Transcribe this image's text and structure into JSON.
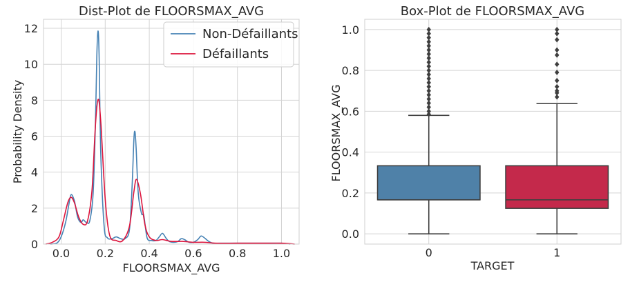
{
  "chart_data": [
    {
      "type": "line",
      "title": "Dist-Plot de FLOORSMAX_AVG",
      "xlabel": "FLOORSMAX_AVG",
      "ylabel": "Probability Density",
      "xlim": [
        -0.08,
        1.08
      ],
      "ylim": [
        0,
        12.5
      ],
      "xticks": [
        "0.0",
        "0.2",
        "0.4",
        "0.6",
        "0.8",
        "1.0"
      ],
      "yticks": [
        "0",
        "2",
        "4",
        "6",
        "8",
        "10",
        "12"
      ],
      "grid": true,
      "legend": "top-right",
      "series": [
        {
          "name": "Non-Défaillants",
          "color": "#4682B4",
          "x": [
            -0.05,
            -0.02,
            0.0,
            0.02,
            0.035,
            0.045,
            0.06,
            0.075,
            0.09,
            0.1,
            0.115,
            0.13,
            0.145,
            0.155,
            0.162,
            0.167,
            0.172,
            0.18,
            0.195,
            0.21,
            0.23,
            0.25,
            0.27,
            0.29,
            0.31,
            0.322,
            0.33,
            0.335,
            0.34,
            0.35,
            0.365,
            0.375,
            0.39,
            0.41,
            0.43,
            0.445,
            0.46,
            0.475,
            0.49,
            0.51,
            0.53,
            0.545,
            0.56,
            0.58,
            0.6,
            0.62,
            0.635,
            0.65,
            0.67,
            0.69,
            0.72,
            0.76,
            0.8,
            0.85,
            0.9,
            0.95,
            1.0,
            1.04
          ],
          "y": [
            0.0,
            0.05,
            0.4,
            1.2,
            2.2,
            2.75,
            2.4,
            1.5,
            1.2,
            1.35,
            1.2,
            1.3,
            2.8,
            6.5,
            10.5,
            11.85,
            10.6,
            5.0,
            1.0,
            0.35,
            0.3,
            0.4,
            0.3,
            0.3,
            0.8,
            3.2,
            5.8,
            6.25,
            5.4,
            2.8,
            1.7,
            1.6,
            0.35,
            0.2,
            0.2,
            0.4,
            0.6,
            0.35,
            0.15,
            0.1,
            0.15,
            0.3,
            0.25,
            0.1,
            0.1,
            0.25,
            0.45,
            0.35,
            0.15,
            0.05,
            0.05,
            0.05,
            0.05,
            0.05,
            0.05,
            0.05,
            0.05,
            0.0
          ]
        },
        {
          "name": "Défaillants",
          "color": "#DC143C",
          "x": [
            -0.07,
            -0.04,
            -0.01,
            0.01,
            0.03,
            0.045,
            0.06,
            0.08,
            0.1,
            0.12,
            0.14,
            0.155,
            0.168,
            0.18,
            0.2,
            0.22,
            0.25,
            0.28,
            0.31,
            0.33,
            0.342,
            0.36,
            0.38,
            0.4,
            0.43,
            0.46,
            0.5,
            0.55,
            0.6,
            0.65,
            0.7,
            0.8,
            0.9,
            1.0,
            1.06
          ],
          "y": [
            0.0,
            0.1,
            0.4,
            1.3,
            2.3,
            2.6,
            2.3,
            1.5,
            1.1,
            1.3,
            3.0,
            6.5,
            8.05,
            6.8,
            2.5,
            0.5,
            0.2,
            0.2,
            1.0,
            2.9,
            3.6,
            2.8,
            1.1,
            0.4,
            0.2,
            0.25,
            0.15,
            0.15,
            0.1,
            0.1,
            0.05,
            0.05,
            0.05,
            0.05,
            0.0
          ]
        }
      ]
    },
    {
      "type": "box",
      "title": "Box-Plot de FLOORSMAX_AVG",
      "xlabel": "TARGET",
      "ylabel": "FLOORSMAX_AVG",
      "categories": [
        "0",
        "1"
      ],
      "ylim": [
        -0.05,
        1.05
      ],
      "yticks": [
        "0.0",
        "0.2",
        "0.4",
        "0.6",
        "0.8",
        "1.0"
      ],
      "grid": true,
      "boxes": [
        {
          "name": "0",
          "color": "#4F81A8",
          "whisker_low": 0.0,
          "q1": 0.1667,
          "median": 0.1667,
          "q3": 0.3333,
          "whisker_high": 0.58,
          "outliers": [
            0.585,
            0.6,
            0.62,
            0.64,
            0.66,
            0.68,
            0.7,
            0.72,
            0.74,
            0.76,
            0.78,
            0.8,
            0.82,
            0.84,
            0.86,
            0.88,
            0.9,
            0.92,
            0.94,
            0.96,
            0.98,
            1.0
          ]
        },
        {
          "name": "1",
          "color": "#C4294B",
          "whisker_low": 0.0,
          "q1": 0.125,
          "median": 0.1667,
          "q3": 0.3333,
          "whisker_high": 0.6375,
          "outliers": [
            0.67,
            0.69,
            0.7,
            0.72,
            0.75,
            0.79,
            0.83,
            0.875,
            0.9,
            0.95,
            0.98,
            1.0
          ]
        }
      ]
    }
  ]
}
